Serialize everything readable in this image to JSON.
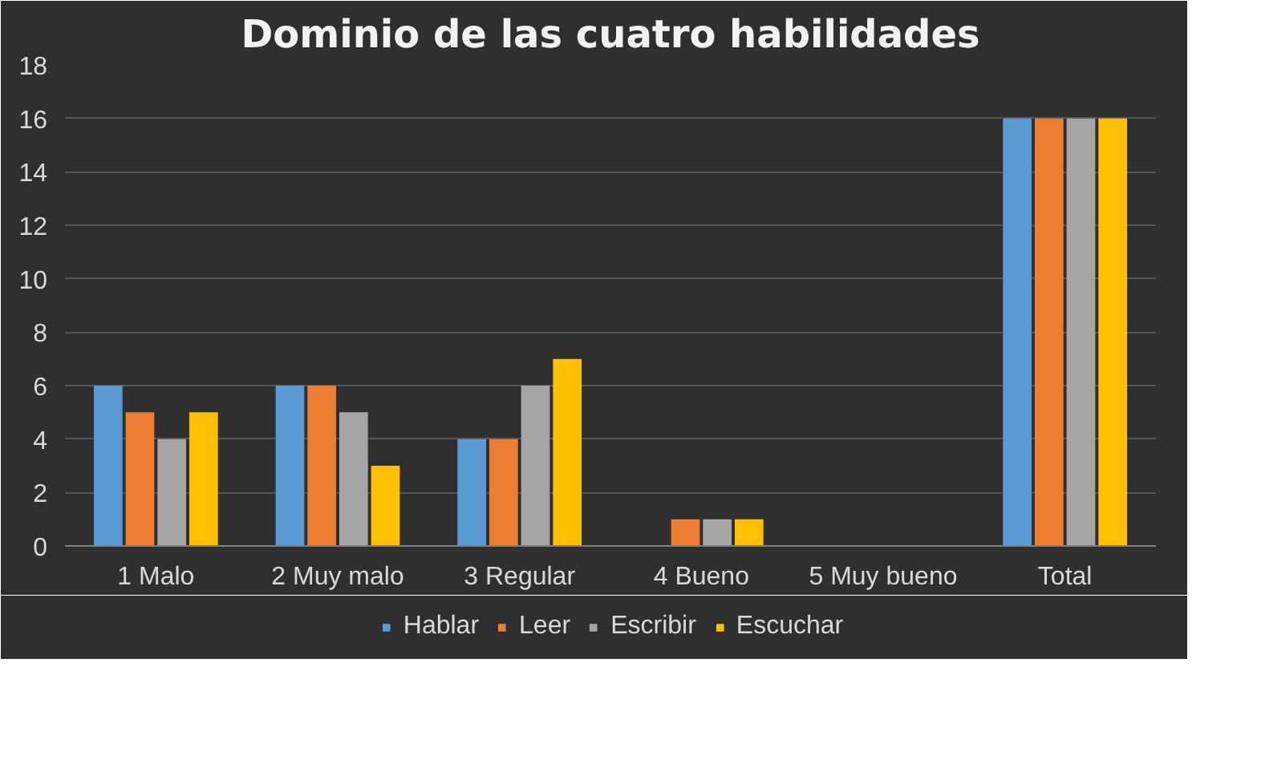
{
  "chart_data": {
    "type": "bar",
    "title": "Dominio de las cuatro habilidades",
    "categories": [
      "1 Malo",
      "2 Muy malo",
      "3 Regular",
      "4 Bueno",
      "5 Muy bueno",
      "Total"
    ],
    "series": [
      {
        "name": "Hablar",
        "color": "#5b9bd5",
        "values": [
          6,
          6,
          4,
          0,
          0,
          16
        ]
      },
      {
        "name": "Leer",
        "color": "#ed7d31",
        "values": [
          5,
          6,
          4,
          1,
          0,
          16
        ]
      },
      {
        "name": "Escribir",
        "color": "#a5a5a5",
        "values": [
          4,
          5,
          6,
          1,
          0,
          16
        ]
      },
      {
        "name": "Escuchar",
        "color": "#ffc000",
        "values": [
          5,
          3,
          7,
          1,
          0,
          16
        ]
      }
    ],
    "ylim": [
      0,
      18
    ],
    "yticks": [
      0,
      2,
      4,
      6,
      8,
      10,
      12,
      14,
      16,
      18
    ],
    "grid": "y",
    "legend": "bottom"
  }
}
